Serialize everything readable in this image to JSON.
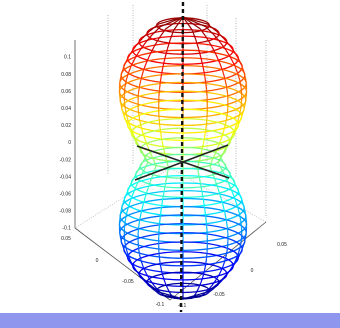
{
  "colors": {
    "background": "#ffffff",
    "bottom_bar": "#8f96ee",
    "axis_line": "#111111",
    "box_line": "#9a9a9a"
  },
  "chart_data": {
    "type": "surface3d",
    "title": "",
    "xlabel": "",
    "ylabel": "",
    "zlabel": "",
    "grid": true,
    "colormap": "jet",
    "surface": "figure-eight radiation pattern (dipole-like), two lobes along the vertical axis",
    "zlim": [
      -0.1,
      0.1
    ],
    "xlim": [
      -0.1,
      0.1
    ],
    "ylim": [
      -0.1,
      0.1
    ],
    "z_ticks": [
      "-0.1",
      "-0.08",
      "-0.06",
      "-0.04",
      "-0.02",
      "0",
      "0.02",
      "0.04",
      "0.06",
      "0.08",
      "0.1"
    ],
    "x_ticks": [
      "-0.1",
      "-0.05",
      "0",
      "0.05"
    ],
    "y_ticks": [
      "-0.1",
      "-0.05",
      "0",
      "0.05"
    ],
    "vertical_axis_line": "dashed black line along z-axis",
    "cross_lines": 2
  }
}
